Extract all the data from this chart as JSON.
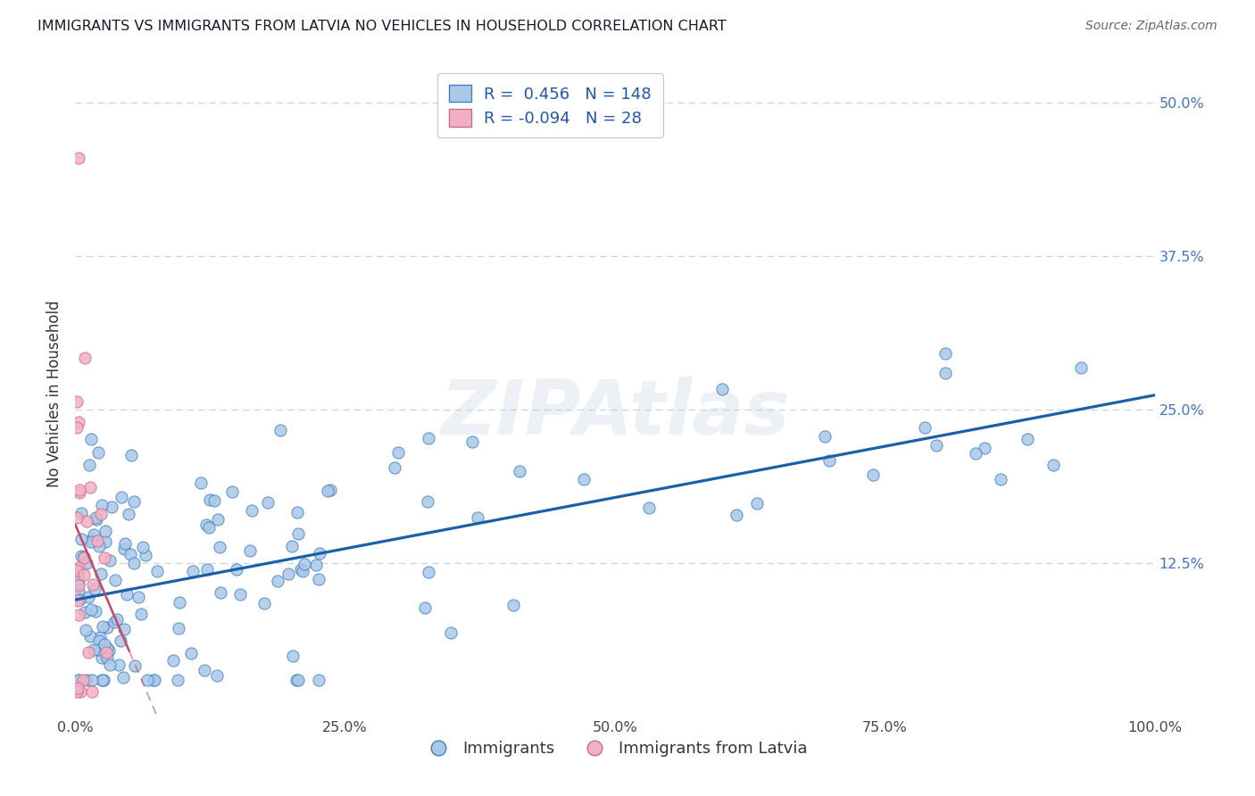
{
  "title": "IMMIGRANTS VS IMMIGRANTS FROM LATVIA NO VEHICLES IN HOUSEHOLD CORRELATION CHART",
  "source": "Source: ZipAtlas.com",
  "ylabel": "No Vehicles in Household",
  "legend_label1": "Immigrants",
  "legend_label2": "Immigrants from Latvia",
  "R1": 0.456,
  "N1": 148,
  "R2": -0.094,
  "N2": 28,
  "xlim": [
    0.0,
    1.0
  ],
  "ylim": [
    0.0,
    0.525
  ],
  "xticks": [
    0.0,
    0.25,
    0.5,
    0.75,
    1.0
  ],
  "xtick_labels": [
    "0.0%",
    "25.0%",
    "50.0%",
    "75.0%",
    "100.0%"
  ],
  "yticks": [
    0.0,
    0.125,
    0.25,
    0.375,
    0.5
  ],
  "ytick_labels": [
    "",
    "12.5%",
    "25.0%",
    "37.5%",
    "50.0%"
  ],
  "color_blue": "#aac8e8",
  "color_pink": "#f2b0c4",
  "edge_blue": "#4080c0",
  "edge_pink": "#d06888",
  "line_blue": "#1a5fa8",
  "line_pink": "#cc4466",
  "background_color": "#ffffff",
  "watermark": "ZIPAtlas",
  "grid_color": "#c8d4e0",
  "title_color": "#1a1a2e",
  "source_color": "#666677",
  "axis_label_color": "#333344",
  "ytick_color": "#4472c4",
  "xtick_color": "#444455"
}
